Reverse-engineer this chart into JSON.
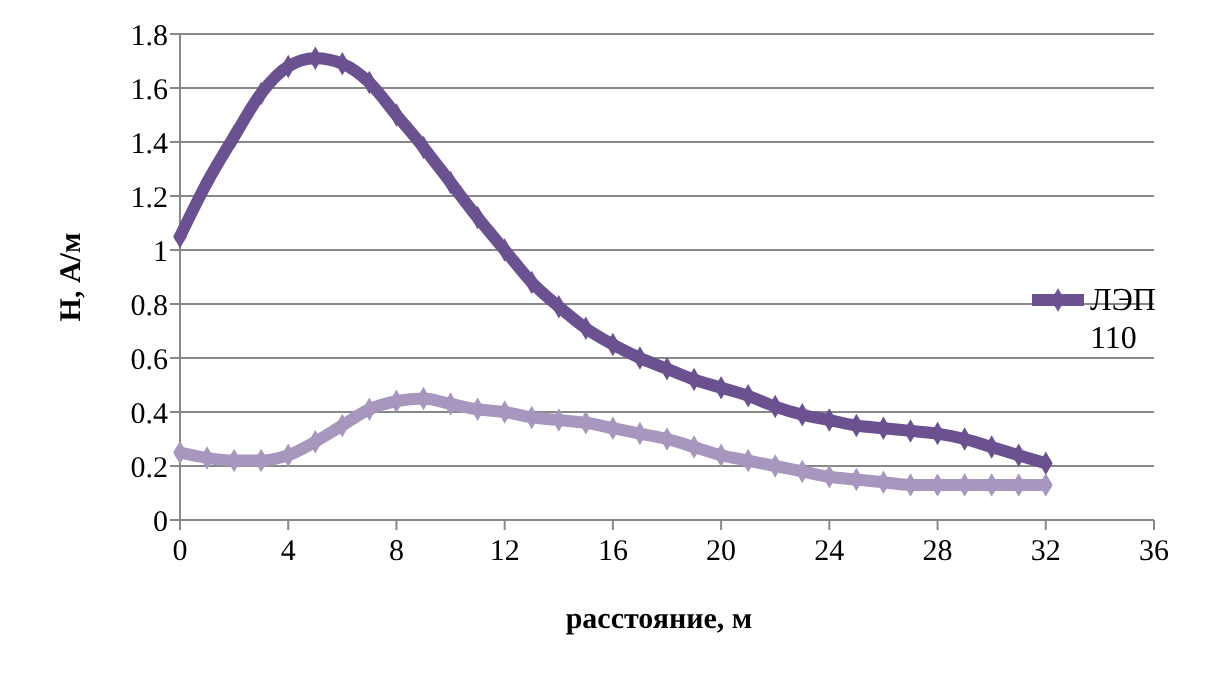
{
  "chart_data": {
    "type": "line",
    "xlabel": "расстояние, м",
    "ylabel": "Н,  А/м",
    "xlim": [
      0,
      36
    ],
    "xticks": [
      0,
      4,
      8,
      12,
      16,
      20,
      24,
      28,
      32,
      36
    ],
    "ylim": [
      0,
      1.8
    ],
    "yticks": [
      0,
      0.2,
      0.4,
      0.6,
      0.8,
      1,
      1.2,
      1.4,
      1.6,
      1.8
    ],
    "grid": "y",
    "legend": "right",
    "marker": "diamond",
    "line_style": "solid",
    "x": [
      0,
      1,
      2,
      3,
      4,
      5,
      6,
      7,
      8,
      9,
      10,
      11,
      12,
      13,
      14,
      15,
      16,
      17,
      18,
      19,
      20,
      21,
      22,
      23,
      24,
      25,
      26,
      27,
      28,
      29,
      30,
      31,
      32
    ],
    "series": [
      {
        "name": "ЛЭП 110",
        "color": "#6b5190",
        "values": [
          1.05,
          1.25,
          1.42,
          1.58,
          1.68,
          1.71,
          1.69,
          1.62,
          1.5,
          1.38,
          1.25,
          1.12,
          1.0,
          0.88,
          0.79,
          0.71,
          0.65,
          0.6,
          0.56,
          0.52,
          0.49,
          0.46,
          0.42,
          0.39,
          0.37,
          0.35,
          0.34,
          0.33,
          0.32,
          0.3,
          0.27,
          0.24,
          0.21
        ]
      },
      {
        "color": "#a796bd",
        "values": [
          0.25,
          0.23,
          0.22,
          0.22,
          0.24,
          0.29,
          0.35,
          0.41,
          0.44,
          0.45,
          0.43,
          0.41,
          0.4,
          0.38,
          0.37,
          0.36,
          0.34,
          0.32,
          0.3,
          0.27,
          0.24,
          0.22,
          0.2,
          0.18,
          0.16,
          0.15,
          0.14,
          0.13,
          0.13,
          0.13,
          0.13,
          0.13,
          0.13
        ]
      }
    ]
  }
}
